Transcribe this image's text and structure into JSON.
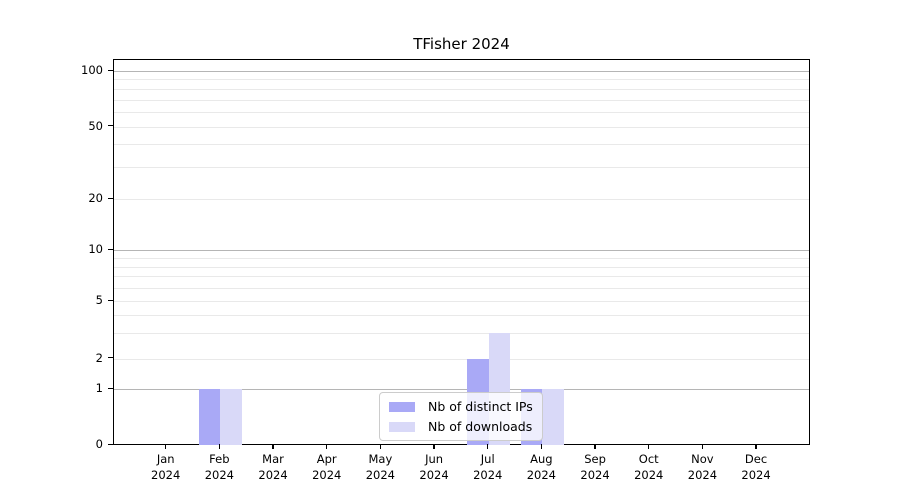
{
  "chart_data": {
    "type": "bar",
    "title": "TFisher 2024",
    "categories": [
      "Jan 2024",
      "Feb 2024",
      "Mar 2024",
      "Apr 2024",
      "May 2024",
      "Jun 2024",
      "Jul 2024",
      "Aug 2024",
      "Sep 2024",
      "Oct 2024",
      "Nov 2024",
      "Dec 2024"
    ],
    "x_tick_month_labels": [
      "Jan",
      "Feb",
      "Mar",
      "Apr",
      "May",
      "Jun",
      "Jul",
      "Aug",
      "Sep",
      "Oct",
      "Nov",
      "Dec"
    ],
    "x_tick_year_label": "2024",
    "series": [
      {
        "name": "Nb of distinct IPs",
        "color": "#a9a9f6",
        "values": [
          0,
          1,
          0,
          0,
          0,
          0,
          2,
          1,
          0,
          0,
          0,
          0
        ]
      },
      {
        "name": "Nb of downloads",
        "color": "#d9d9f8",
        "values": [
          0,
          1,
          0,
          0,
          0,
          0,
          3,
          1,
          0,
          0,
          0,
          0
        ]
      }
    ],
    "y_axis": {
      "scale": "log-with-zero-baseline",
      "tick_labels": [
        "0",
        "1",
        "2",
        "5",
        "10",
        "20",
        "50",
        "100"
      ],
      "tick_values": [
        0,
        1,
        2,
        5,
        10,
        20,
        50,
        100
      ],
      "major_gridline_values": [
        1,
        10,
        100
      ],
      "minor_gridline_values": [
        2,
        3,
        4,
        5,
        6,
        7,
        8,
        9,
        20,
        30,
        40,
        50,
        60,
        70,
        80,
        90
      ]
    },
    "legend": {
      "position": "lower center"
    },
    "colors": {
      "major_grid": "#b5b5b5",
      "minor_grid": "#e9e9e9",
      "axis": "#000000",
      "legend_border": "#cccccc"
    }
  }
}
